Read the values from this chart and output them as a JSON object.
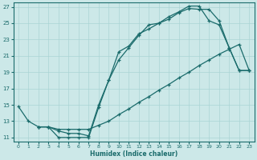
{
  "xlabel": "Humidex (Indice chaleur)",
  "xlim": [
    -0.5,
    23.5
  ],
  "ylim": [
    10.5,
    27.5
  ],
  "xticks": [
    0,
    1,
    2,
    3,
    4,
    5,
    6,
    7,
    8,
    9,
    10,
    11,
    12,
    13,
    14,
    15,
    16,
    17,
    18,
    19,
    20,
    21,
    22,
    23
  ],
  "yticks": [
    11,
    13,
    15,
    17,
    19,
    21,
    23,
    25,
    27
  ],
  "bg_color": "#cce8e8",
  "grid_color": "#aad4d4",
  "line_color": "#1a6b6b",
  "line1_x": [
    0,
    1,
    2,
    3,
    4,
    5,
    6,
    7,
    8,
    9,
    10,
    11,
    12,
    13,
    14,
    15,
    16,
    17,
    18,
    19,
    20,
    21,
    22,
    23
  ],
  "line1_y": [
    14.8,
    13.0,
    12.3,
    12.3,
    11.0,
    11.0,
    11.0,
    11.0,
    14.7,
    18.0,
    21.5,
    22.2,
    23.7,
    24.3,
    25.0,
    25.8,
    26.4,
    27.1,
    27.1,
    25.3,
    24.8,
    22.0,
    19.2,
    19.2
  ],
  "line2_x": [
    2,
    3,
    4,
    5,
    6,
    7,
    8,
    9,
    10,
    11,
    12,
    13,
    14,
    15,
    16,
    17,
    18,
    19,
    20,
    21,
    22,
    23
  ],
  "line2_y": [
    12.3,
    12.3,
    11.8,
    11.5,
    11.5,
    11.2,
    15.0,
    18.0,
    20.5,
    22.0,
    23.5,
    24.8,
    25.0,
    25.5,
    26.3,
    26.8,
    26.7,
    26.7,
    25.3,
    22.0,
    19.2,
    19.2
  ],
  "line3_x": [
    2,
    3,
    4,
    5,
    6,
    7,
    8,
    9,
    10,
    11,
    12,
    13,
    14,
    15,
    16,
    17,
    18,
    19,
    20,
    21,
    22,
    23
  ],
  "line3_y": [
    12.3,
    12.3,
    12.0,
    12.0,
    12.0,
    12.0,
    12.5,
    13.0,
    13.8,
    14.5,
    15.3,
    16.0,
    16.8,
    17.5,
    18.3,
    19.0,
    19.8,
    20.5,
    21.2,
    21.8,
    22.4,
    19.2
  ]
}
